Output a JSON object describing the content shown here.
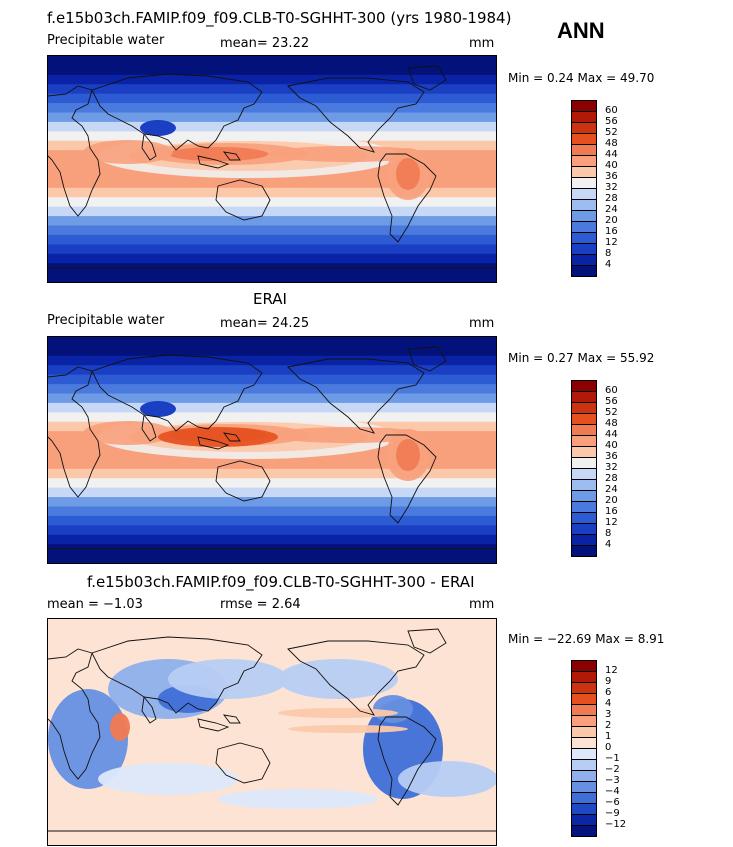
{
  "season": "ANN",
  "panels": [
    {
      "title": "f.e15b03ch.FAMIP.f09_f09.CLB-T0-SGHHT-300 (yrs 1980-1984)",
      "left_label": "Precipitable water",
      "mid_label": "mean=  23.22",
      "units": "mm",
      "minmax": "Min =    0.24 Max =   49.70",
      "kind": "field",
      "colorbar": {
        "labels": [
          "60",
          "56",
          "52",
          "48",
          "44",
          "40",
          "36",
          "32",
          "28",
          "24",
          "20",
          "16",
          "12",
          "8",
          "4"
        ],
        "colors": [
          "#8b0000",
          "#b11a08",
          "#cc3311",
          "#e5501e",
          "#f07a52",
          "#f8a07c",
          "#fcc8aa",
          "#f1f1f1",
          "#c6d8f5",
          "#9dbdf0",
          "#6e9be6",
          "#4a7ade",
          "#2d5bd3",
          "#1a3fc3",
          "#0a22a6",
          "#03127a"
        ]
      },
      "map_label": "Precipitable water map (model)"
    },
    {
      "title": "ERAI",
      "left_label": "Precipitable water",
      "mid_label": "mean=  24.25",
      "units": "mm",
      "minmax": "Min =    0.27 Max =   55.92",
      "kind": "field",
      "colorbar": {
        "labels": [
          "60",
          "56",
          "52",
          "48",
          "44",
          "40",
          "36",
          "32",
          "28",
          "24",
          "20",
          "16",
          "12",
          "8",
          "4"
        ],
        "colors": [
          "#8b0000",
          "#b11a08",
          "#cc3311",
          "#e5501e",
          "#f07a52",
          "#f8a07c",
          "#fcc8aa",
          "#f1f1f1",
          "#c6d8f5",
          "#9dbdf0",
          "#6e9be6",
          "#4a7ade",
          "#2d5bd3",
          "#1a3fc3",
          "#0a22a6",
          "#03127a"
        ]
      },
      "map_label": "Precipitable water map (ERAI)"
    },
    {
      "title": "f.e15b03ch.FAMIP.f09_f09.CLB-T0-SGHHT-300 - ERAI",
      "left_label": "mean =  −1.03",
      "mid_label": "rmse =    2.64",
      "units": "mm",
      "minmax": "Min = −22.69 Max =    8.91",
      "kind": "diff",
      "colorbar": {
        "labels": [
          "12",
          "9",
          "6",
          "4",
          "3",
          "2",
          "1",
          "0",
          "−1",
          "−2",
          "−3",
          "−4",
          "−6",
          "−9",
          "−12"
        ],
        "colors": [
          "#8b0000",
          "#b11a08",
          "#cc3311",
          "#e5501e",
          "#f07a52",
          "#f8a07c",
          "#fcc8aa",
          "#fde3d3",
          "#dde8fa",
          "#b7cef3",
          "#8fb0ec",
          "#6690e2",
          "#3f6fd8",
          "#2048c4",
          "#0b27a8",
          "#04137d"
        ]
      },
      "map_label": "Difference map"
    }
  ]
}
